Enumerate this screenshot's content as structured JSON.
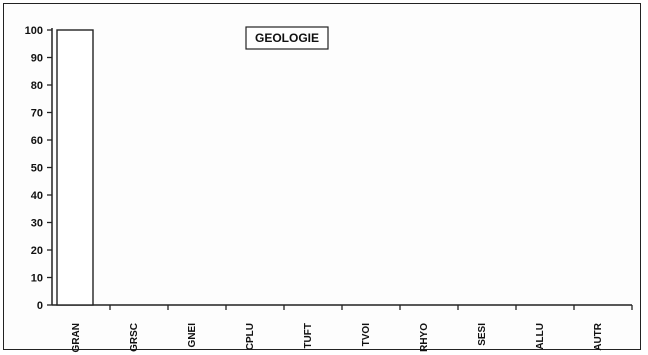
{
  "chart_data": {
    "type": "bar",
    "title": "GEOLOGIE",
    "xlabel": "",
    "ylabel": "",
    "ylim": [
      0,
      100
    ],
    "yticks": [
      "0",
      "10",
      "20",
      "30",
      "40",
      "50",
      "60",
      "70",
      "80",
      "90",
      "100"
    ],
    "categories": [
      "GRAN",
      "GRSC",
      "GNEI",
      "CPLU",
      "TUFT",
      "TVOI",
      "RHYO",
      "SESI",
      "ALLU",
      "AUTR"
    ],
    "values": [
      100,
      0,
      0,
      0,
      0,
      0,
      0,
      0,
      0,
      0
    ],
    "grid": false,
    "legend": "none",
    "bar_fill": "#ffffff",
    "bar_stroke": "#222222"
  }
}
